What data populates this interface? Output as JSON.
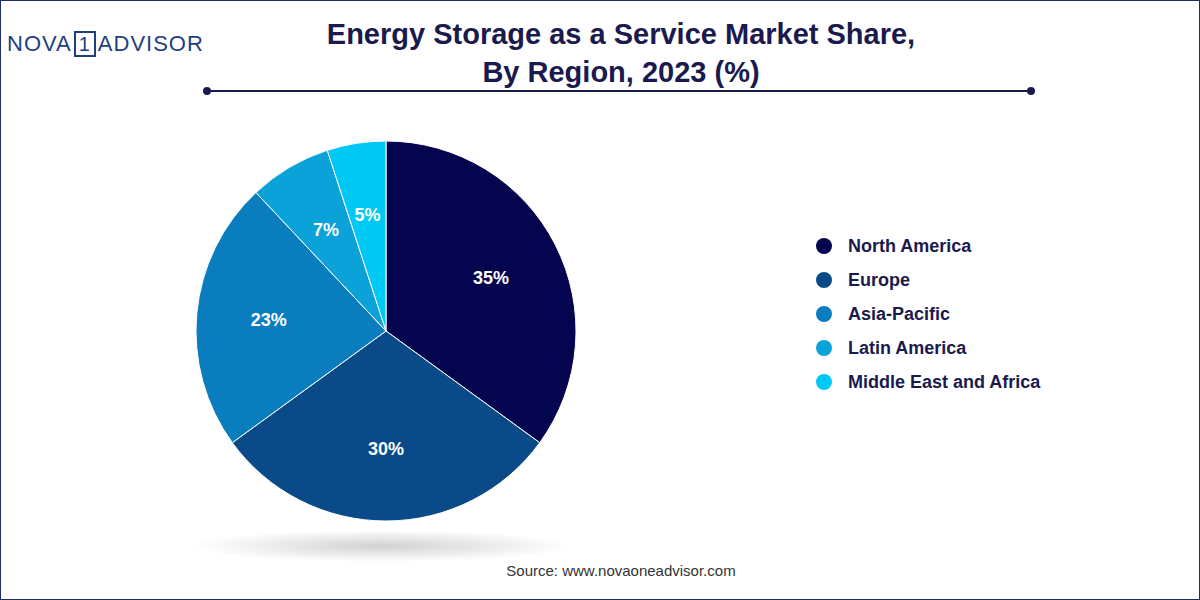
{
  "chart_data": {
    "type": "pie",
    "title": "Energy Storage as a Service Market Share,\nBy Region, 2023 (%)",
    "categories": [
      "North America",
      "Europe",
      "Asia-Pacific",
      "Latin America",
      "Middle East and Africa"
    ],
    "values": [
      35,
      30,
      23,
      7,
      5
    ],
    "value_labels": [
      "35%",
      "30%",
      "23%",
      "7%",
      "5%"
    ],
    "colors": [
      "#05054f",
      "#0a4a88",
      "#0a7dbf",
      "#0aa2d8",
      "#00c8f4"
    ],
    "data_labels": true,
    "legend": "right",
    "annotations": [
      "NOVA1ADVISOR",
      "Source: www.novaoneadvisor.com"
    ]
  }
}
